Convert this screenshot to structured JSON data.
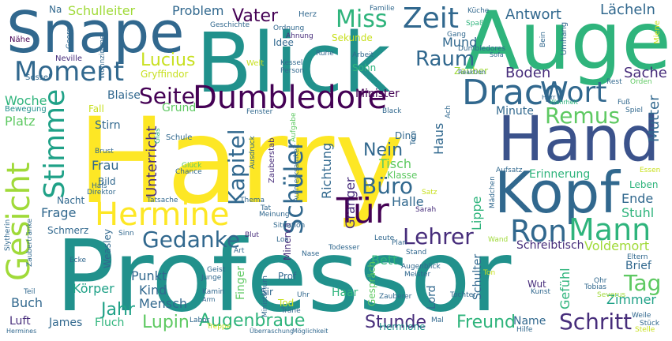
{
  "palette": {
    "yellow": "#fde725",
    "lime": "#a0da39",
    "green": "#5ec962",
    "teal": "#21918c",
    "seagreen": "#2fb47c",
    "blue": "#3b528b",
    "indigo": "#31688e",
    "purple": "#440154",
    "violet": "#472d7b",
    "aqua": "#1fa187",
    "pale": "#c8e020"
  },
  "words": [
    {
      "text": "Harry",
      "color": "yellow"
    },
    {
      "text": "Professor",
      "color": "teal"
    },
    {
      "text": "Blick",
      "color": "teal"
    },
    {
      "text": "Auge",
      "color": "seagreen"
    },
    {
      "text": "Snape",
      "color": "indigo"
    },
    {
      "text": "Hand",
      "color": "blue"
    },
    {
      "text": "Kopf",
      "color": "indigo"
    },
    {
      "text": "Hermine",
      "color": "yellow"
    },
    {
      "text": "Draco",
      "color": "indigo"
    },
    {
      "text": "Dumbledore",
      "color": "purple"
    },
    {
      "text": "Moment",
      "color": "indigo"
    },
    {
      "text": "Gesicht",
      "color": "lime"
    },
    {
      "text": "Stimme",
      "color": "aqua"
    },
    {
      "text": "Tür",
      "color": "purple"
    },
    {
      "text": "Wort",
      "color": "indigo"
    },
    {
      "text": "Zeit",
      "color": "indigo"
    },
    {
      "text": "Miss",
      "color": "seagreen"
    },
    {
      "text": "Schüler",
      "color": "indigo"
    },
    {
      "text": "Ron",
      "color": "indigo"
    },
    {
      "text": "Mann",
      "color": "seagreen"
    },
    {
      "text": "Lehrer",
      "color": "violet"
    },
    {
      "text": "Remus",
      "color": "green"
    },
    {
      "text": "Gedanke",
      "color": "indigo"
    },
    {
      "text": "Kapitel",
      "color": "indigo"
    },
    {
      "text": "Büro",
      "color": "indigo"
    },
    {
      "text": "Raum",
      "color": "indigo"
    },
    {
      "text": "Seite",
      "color": "purple"
    },
    {
      "text": "Tag",
      "color": "green"
    },
    {
      "text": "Schritt",
      "color": "violet"
    },
    {
      "text": "Augenbraue",
      "color": "seagreen"
    },
    {
      "text": "Vater",
      "color": "purple"
    },
    {
      "text": "Lucius",
      "color": "pale"
    },
    {
      "text": "Antwort",
      "color": "indigo"
    },
    {
      "text": "Lächeln",
      "color": "indigo"
    },
    {
      "text": "Jahr",
      "color": "aqua"
    },
    {
      "text": "Nein",
      "color": "indigo"
    },
    {
      "text": "Lupin",
      "color": "green"
    },
    {
      "text": "Stunde",
      "color": "violet"
    },
    {
      "text": "Freund",
      "color": "seagreen"
    },
    {
      "text": "Mund",
      "color": "indigo"
    },
    {
      "text": "Boden",
      "color": "violet"
    },
    {
      "text": "Sache",
      "color": "violet"
    },
    {
      "text": "Mutter",
      "color": "indigo"
    },
    {
      "text": "Unterricht",
      "color": "violet"
    },
    {
      "text": "Granger",
      "color": "violet"
    },
    {
      "text": "Richtung",
      "color": "indigo"
    },
    {
      "text": "Schulleiter",
      "color": "lime"
    },
    {
      "text": "Problem",
      "color": "indigo"
    },
    {
      "text": "Woche",
      "color": "seagreen"
    },
    {
      "text": "Platz",
      "color": "green"
    },
    {
      "text": "Frau",
      "color": "indigo"
    },
    {
      "text": "Frage",
      "color": "indigo"
    },
    {
      "text": "Punkt",
      "color": "indigo"
    },
    {
      "text": "Körper",
      "color": "aqua"
    },
    {
      "text": "Buch",
      "color": "indigo"
    },
    {
      "text": "Mensch",
      "color": "indigo"
    },
    {
      "text": "Kind",
      "color": "indigo"
    },
    {
      "text": "Haus",
      "color": "indigo"
    },
    {
      "text": "Tisch",
      "color": "green"
    },
    {
      "text": "Halle",
      "color": "indigo"
    },
    {
      "text": "Bett",
      "color": "seagreen"
    },
    {
      "text": "Lippe",
      "color": "seagreen"
    },
    {
      "text": "Ende",
      "color": "indigo"
    },
    {
      "text": "Stuhl",
      "color": "seagreen"
    },
    {
      "text": "Leben",
      "color": "seagreen"
    },
    {
      "text": "Erinnerung",
      "color": "seagreen"
    },
    {
      "text": "Minute",
      "color": "indigo"
    },
    {
      "text": "Zimmer",
      "color": "aqua"
    },
    {
      "text": "Brief",
      "color": "indigo"
    },
    {
      "text": "Gefühl",
      "color": "seagreen"
    },
    {
      "text": "Voldemort",
      "color": "lime"
    },
    {
      "text": "Schreibtisch",
      "color": "violet"
    },
    {
      "text": "Finger",
      "color": "green"
    },
    {
      "text": "Fluch",
      "color": "seagreen"
    },
    {
      "text": "James",
      "color": "indigo"
    },
    {
      "text": "Luft",
      "color": "violet"
    },
    {
      "text": "Name",
      "color": "indigo"
    },
    {
      "text": "Hermione",
      "color": "teal"
    },
    {
      "text": "Wut",
      "color": "violet"
    },
    {
      "text": "Haar",
      "color": "seagreen"
    },
    {
      "text": "Schulter",
      "color": "indigo"
    },
    {
      "text": "Lord",
      "color": "indigo"
    },
    {
      "text": "Gespräch",
      "color": "green"
    },
    {
      "text": "Minerva",
      "color": "violet"
    },
    {
      "text": "Sir",
      "color": "indigo"
    },
    {
      "text": "Tod",
      "color": "pale"
    },
    {
      "text": "Prof",
      "color": "indigo"
    },
    {
      "text": "Weasley",
      "color": "indigo"
    },
    {
      "text": "Schmerz",
      "color": "indigo"
    },
    {
      "text": "Nacht",
      "color": "indigo"
    },
    {
      "text": "Stirn",
      "color": "indigo"
    },
    {
      "text": "Blaise",
      "color": "indigo"
    },
    {
      "text": "Grund",
      "color": "green"
    },
    {
      "text": "Sohn",
      "color": "seagreen"
    },
    {
      "text": "Zauber",
      "color": "lime"
    },
    {
      "text": "Idee",
      "color": "indigo"
    },
    {
      "text": "Gryffindor",
      "color": "pale"
    },
    {
      "text": "Bewegung",
      "color": "teal"
    },
    {
      "text": "Fall",
      "color": "pale"
    },
    {
      "text": "Bild",
      "color": "indigo"
    },
    {
      "text": "Sekunde",
      "color": "pale"
    },
    {
      "text": "Herz",
      "color": "indigo"
    },
    {
      "text": "Na",
      "color": "indigo"
    },
    {
      "text": "Familie",
      "color": "indigo"
    },
    {
      "text": "Küche",
      "color": "indigo"
    },
    {
      "text": "Spaß",
      "color": "seagreen"
    },
    {
      "text": "Gang",
      "color": "indigo"
    },
    {
      "text": "Nähe",
      "color": "purple"
    },
    {
      "text": "George",
      "color": "indigo"
    },
    {
      "text": "Neville",
      "color": "violet"
    },
    {
      "text": "Sessel",
      "color": "indigo"
    },
    {
      "text": "Wohnzimmer",
      "color": "indigo"
    },
    {
      "text": "Welt",
      "color": "pale"
    },
    {
      "text": "Kessel",
      "color": "indigo"
    },
    {
      "text": "Person",
      "color": "indigo"
    },
    {
      "text": "Ruhe",
      "color": "indigo"
    },
    {
      "text": "Arbeit",
      "color": "indigo"
    },
    {
      "text": "Geschichte",
      "color": "indigo"
    },
    {
      "text": "Ordnung",
      "color": "indigo"
    },
    {
      "text": "Ahnung",
      "color": "violet"
    },
    {
      "text": "Reaktion",
      "color": "indigo"
    },
    {
      "text": "Dumbledores",
      "color": "indigo"
    },
    {
      "text": "Sofa",
      "color": "indigo"
    },
    {
      "text": "Bein",
      "color": "indigo"
    },
    {
      "text": "Umhang",
      "color": "indigo"
    },
    {
      "text": "Miene",
      "color": "pale"
    },
    {
      "text": "Rest",
      "color": "indigo"
    },
    {
      "text": "Orden",
      "color": "green"
    },
    {
      "text": "Fuß",
      "color": "indigo"
    },
    {
      "text": "Spiel",
      "color": "indigo"
    },
    {
      "text": "Herr",
      "color": "indigo"
    },
    {
      "text": "Wahrheit",
      "color": "seagreen"
    },
    {
      "text": "Minister",
      "color": "purple"
    },
    {
      "text": "Black",
      "color": "indigo"
    },
    {
      "text": "Ach",
      "color": "indigo"
    },
    {
      "text": "Fenster",
      "color": "indigo"
    },
    {
      "text": "Schule",
      "color": "indigo"
    },
    {
      "text": "Glas",
      "color": "seagreen"
    },
    {
      "text": "Brust",
      "color": "indigo"
    },
    {
      "text": "Glück",
      "color": "green"
    },
    {
      "text": "Chance",
      "color": "indigo"
    },
    {
      "text": "Ding",
      "color": "indigo"
    },
    {
      "text": "Tom",
      "color": "indigo"
    },
    {
      "text": "Aufgabe",
      "color": "green"
    },
    {
      "text": "Klasse",
      "color": "green"
    },
    {
      "text": "Zauberstab",
      "color": "violet"
    },
    {
      "text": "Aufmerksamkeit",
      "color": "indigo"
    },
    {
      "text": "Ausdruck",
      "color": "indigo"
    },
    {
      "text": "Ministerium",
      "color": "indigo"
    },
    {
      "text": "Aufsatz",
      "color": "indigo"
    },
    {
      "text": "Essen",
      "color": "pale"
    },
    {
      "text": "Mädchen",
      "color": "indigo"
    },
    {
      "text": "Satz",
      "color": "pale"
    },
    {
      "text": "Sarah",
      "color": "violet"
    },
    {
      "text": "Hals",
      "color": "indigo"
    },
    {
      "text": "Direktor",
      "color": "indigo"
    },
    {
      "text": "Tatsache",
      "color": "indigo"
    },
    {
      "text": "Thema",
      "color": "indigo"
    },
    {
      "text": "Tat",
      "color": "indigo"
    },
    {
      "text": "Meinung",
      "color": "indigo"
    },
    {
      "text": "Leute",
      "color": "indigo"
    },
    {
      "text": "Wand",
      "color": "lime"
    },
    {
      "text": "Slytherin",
      "color": "indigo"
    },
    {
      "text": "Sinn",
      "color": "indigo"
    },
    {
      "text": "Blut",
      "color": "violet"
    },
    {
      "text": "Situation",
      "color": "indigo"
    },
    {
      "text": "Plan",
      "color": "indigo"
    },
    {
      "text": "Stand",
      "color": "indigo"
    },
    {
      "text": "Eltern",
      "color": "indigo"
    },
    {
      "text": "Zaubertränke",
      "color": "indigo"
    },
    {
      "text": "Los",
      "color": "indigo"
    },
    {
      "text": "Art",
      "color": "indigo"
    },
    {
      "text": "Todesser",
      "color": "indigo"
    },
    {
      "text": "Ecke",
      "color": "indigo"
    },
    {
      "text": "Nase",
      "color": "indigo"
    },
    {
      "text": "Geist",
      "color": "indigo"
    },
    {
      "text": "Junge",
      "color": "indigo"
    },
    {
      "text": "Augenblick",
      "color": "indigo"
    },
    {
      "text": "Meister",
      "color": "indigo"
    },
    {
      "text": "Ton",
      "color": "pale"
    },
    {
      "text": "Ohr",
      "color": "indigo"
    },
    {
      "text": "Tobias",
      "color": "indigo"
    },
    {
      "text": "Severus",
      "color": "lime"
    },
    {
      "text": "Teil",
      "color": "indigo"
    },
    {
      "text": "Kamin",
      "color": "indigo"
    },
    {
      "text": "Arm",
      "color": "indigo"
    },
    {
      "text": "Tochter",
      "color": "indigo"
    },
    {
      "text": "Zauberer",
      "color": "indigo"
    },
    {
      "text": "Kunst",
      "color": "indigo"
    },
    {
      "text": "Uhr",
      "color": "indigo"
    },
    {
      "text": "Träne",
      "color": "indigo"
    },
    {
      "text": "Labor",
      "color": "indigo"
    },
    {
      "text": "Treppe",
      "color": "pale"
    },
    {
      "text": "Überraschung",
      "color": "indigo"
    },
    {
      "text": "Möglichkeit",
      "color": "indigo"
    },
    {
      "text": "Hermines",
      "color": "indigo"
    },
    {
      "text": "Mal",
      "color": "indigo"
    },
    {
      "text": "Hilfe",
      "color": "indigo"
    },
    {
      "text": "Weile",
      "color": "indigo"
    },
    {
      "text": "Stück",
      "color": "indigo"
    },
    {
      "text": "Stelle",
      "color": "pale"
    }
  ]
}
